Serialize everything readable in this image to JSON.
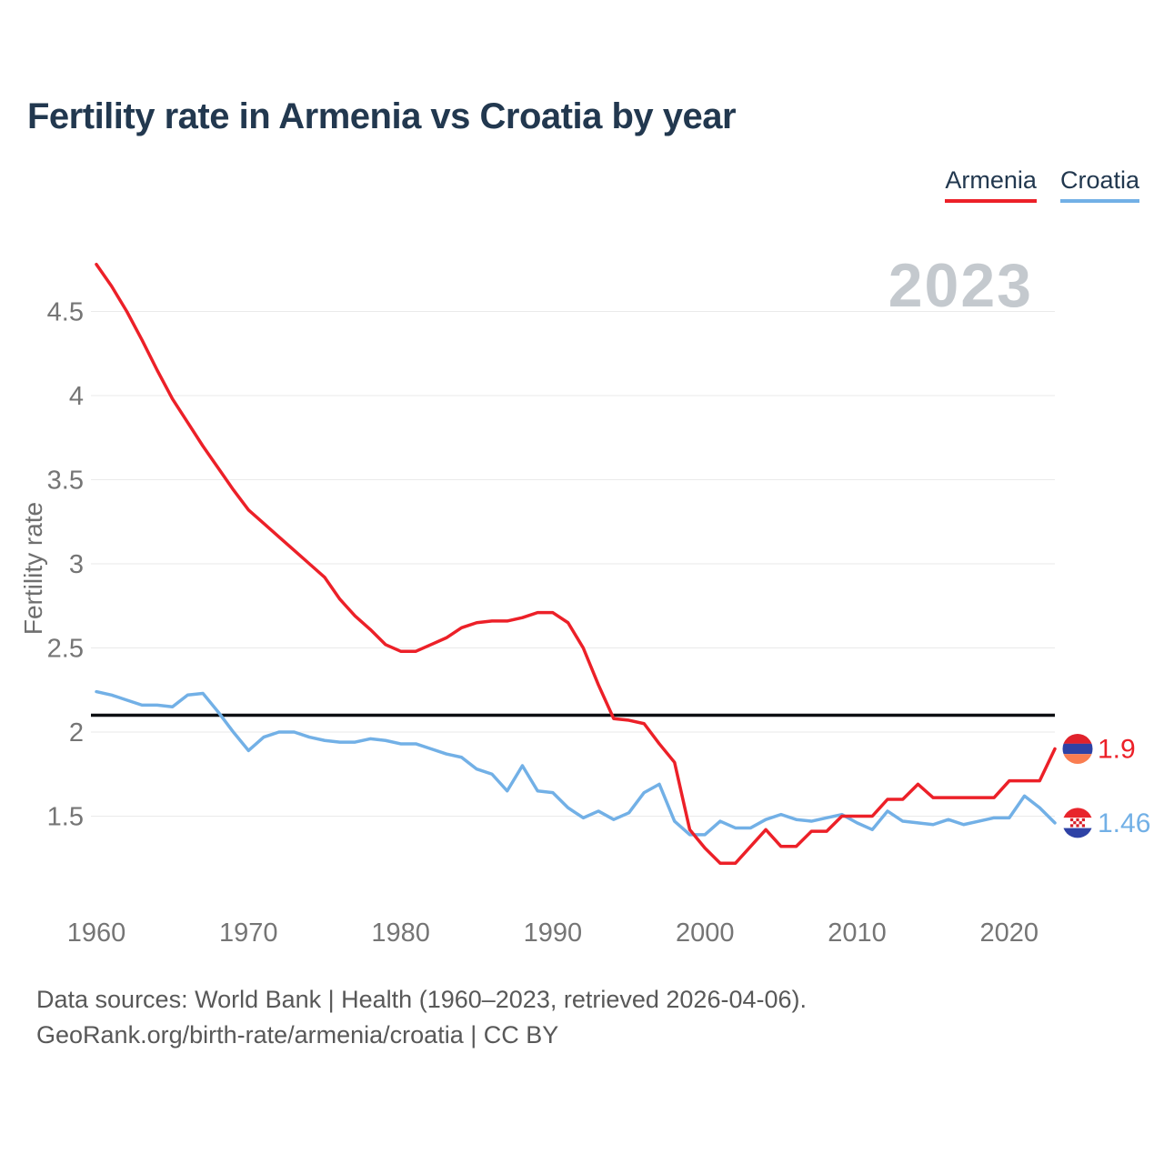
{
  "header": {
    "title": "Fertility rate in Armenia vs Croatia by year"
  },
  "watermark": "2023",
  "footer": {
    "line1": "Data sources: World Bank | Health (1960–2023, retrieved 2026-04-06).",
    "line2": "GeoRank.org/birth-rate/armenia/croatia | CC BY"
  },
  "chart_data": {
    "type": "line",
    "title": "Fertility rate in Armenia vs Croatia by year",
    "xlabel": "",
    "ylabel": "Fertility rate",
    "ylim": [
      1.0,
      4.9
    ],
    "xlim": [
      1960,
      2023
    ],
    "grid": true,
    "legend_position": "top-right",
    "y_ticks": [
      4.5,
      4,
      3.5,
      3,
      2.5,
      2,
      1.5
    ],
    "x_ticks": [
      1960,
      1970,
      1980,
      1990,
      2000,
      2010,
      2020
    ],
    "reference_line": 2.1,
    "years": [
      1960,
      1961,
      1962,
      1963,
      1964,
      1965,
      1966,
      1967,
      1968,
      1969,
      1970,
      1971,
      1972,
      1973,
      1974,
      1975,
      1976,
      1977,
      1978,
      1979,
      1980,
      1981,
      1982,
      1983,
      1984,
      1985,
      1986,
      1987,
      1988,
      1989,
      1990,
      1991,
      1992,
      1993,
      1994,
      1995,
      1996,
      1997,
      1998,
      1999,
      2000,
      2001,
      2002,
      2003,
      2004,
      2005,
      2006,
      2007,
      2008,
      2009,
      2010,
      2011,
      2012,
      2013,
      2014,
      2015,
      2016,
      2017,
      2018,
      2019,
      2020,
      2021,
      2022,
      2023
    ],
    "series": [
      {
        "name": "Armenia",
        "color": "#ec2028",
        "end_label": "1.9",
        "values": [
          4.78,
          4.65,
          4.5,
          4.33,
          4.15,
          3.98,
          3.84,
          3.7,
          3.57,
          3.44,
          3.32,
          3.24,
          3.16,
          3.08,
          3.0,
          2.92,
          2.79,
          2.69,
          2.61,
          2.52,
          2.48,
          2.48,
          2.52,
          2.56,
          2.62,
          2.65,
          2.66,
          2.66,
          2.68,
          2.71,
          2.71,
          2.65,
          2.5,
          2.28,
          2.08,
          2.07,
          2.05,
          1.93,
          1.82,
          1.42,
          1.31,
          1.22,
          1.22,
          1.32,
          1.42,
          1.32,
          1.32,
          1.41,
          1.41,
          1.5,
          1.5,
          1.5,
          1.6,
          1.6,
          1.69,
          1.61,
          1.61,
          1.61,
          1.61,
          1.61,
          1.71,
          1.71,
          1.71,
          1.9
        ]
      },
      {
        "name": "Croatia",
        "color": "#72b0e6",
        "end_label": "1.46",
        "values": [
          2.24,
          2.22,
          2.19,
          2.16,
          2.16,
          2.15,
          2.22,
          2.23,
          2.12,
          2.0,
          1.89,
          1.97,
          2.0,
          2.0,
          1.97,
          1.95,
          1.94,
          1.94,
          1.96,
          1.95,
          1.93,
          1.93,
          1.9,
          1.87,
          1.85,
          1.78,
          1.75,
          1.65,
          1.8,
          1.65,
          1.64,
          1.55,
          1.49,
          1.53,
          1.48,
          1.52,
          1.64,
          1.69,
          1.47,
          1.39,
          1.39,
          1.47,
          1.43,
          1.43,
          1.48,
          1.51,
          1.48,
          1.47,
          1.49,
          1.51,
          1.46,
          1.42,
          1.53,
          1.47,
          1.46,
          1.45,
          1.48,
          1.45,
          1.47,
          1.49,
          1.49,
          1.62,
          1.55,
          1.46
        ]
      }
    ]
  }
}
